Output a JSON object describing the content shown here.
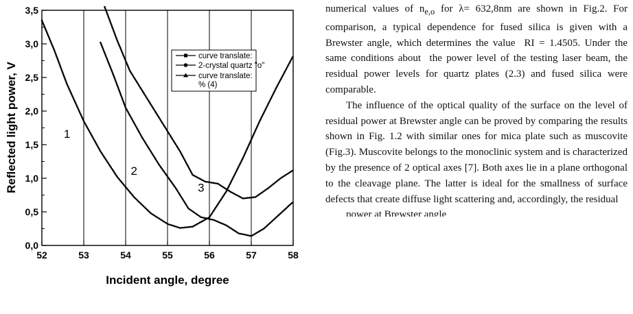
{
  "chart_data": {
    "type": "line",
    "xlabel": "Incident angle, degree",
    "ylabel": "Reflected light power, V",
    "xlim": [
      52,
      58
    ],
    "ylim": [
      0,
      3.5
    ],
    "xticks": [
      "52",
      "53",
      "54",
      "55",
      "56",
      "57",
      "58"
    ],
    "yticks": [
      "0,0",
      "0,5",
      "1,0",
      "1,5",
      "2,0",
      "2,5",
      "3,0",
      "3,5"
    ],
    "grid": "vertical lines at each x tick",
    "legend_position": "upper-center",
    "legend": [
      {
        "label": "curve translate:",
        "marker": "square"
      },
      {
        "label": "2-crystal quartz \"o\"",
        "marker": "circle"
      },
      {
        "label": "curve translate:",
        "marker": "triangle"
      },
      {
        "label": "% (4)",
        "marker": "none"
      }
    ],
    "curve_labels": [
      "1",
      "2",
      "3"
    ],
    "series": [
      {
        "label": "1",
        "x": [
          52.0,
          52.3,
          52.6,
          53.0,
          53.4,
          53.8,
          54.2,
          54.6,
          55.0,
          55.3,
          55.6,
          56.0,
          56.4,
          56.8,
          57.2,
          57.6,
          58.0
        ],
        "y": [
          3.35,
          2.9,
          2.4,
          1.85,
          1.4,
          1.02,
          0.72,
          0.48,
          0.32,
          0.26,
          0.28,
          0.42,
          0.8,
          1.3,
          1.85,
          2.35,
          2.82
        ]
      },
      {
        "label": "2",
        "x": [
          53.4,
          53.7,
          54.0,
          54.4,
          54.8,
          55.2,
          55.5,
          55.8,
          56.1,
          56.4,
          56.7,
          57.0,
          57.3,
          57.6,
          58.0
        ],
        "y": [
          3.02,
          2.55,
          2.05,
          1.6,
          1.2,
          0.85,
          0.55,
          0.42,
          0.38,
          0.3,
          0.18,
          0.14,
          0.25,
          0.42,
          0.65
        ]
      },
      {
        "label": "3",
        "x": [
          53.5,
          53.8,
          54.1,
          54.5,
          54.9,
          55.3,
          55.6,
          55.9,
          56.2,
          56.5,
          56.8,
          57.1,
          57.4,
          57.7,
          58.0
        ],
        "y": [
          3.55,
          3.05,
          2.6,
          2.2,
          1.8,
          1.4,
          1.05,
          0.95,
          0.92,
          0.8,
          0.7,
          0.72,
          0.85,
          1.0,
          1.12
        ]
      }
    ]
  },
  "text": {
    "p1_html": "numerical values of n<sub>e,o</sub> for λ= 632,8nm are shown in Fig.2. For comparison, a typical dependence for fused silica is given with a Brewster angle, which determines the value&nbsp; RI = 1.4505. Under the same conditions about&nbsp; the power level of the testing laser beam, the residual power levels for quartz plates (2.3) and fused silica were comparable.",
    "p2": "The influence of the optical quality of the surface on the level of residual power at  Brewster angle can be proved by comparing the results shown in Fig. 1.2 with similar ones for mica plate such as muscovite (Fig.3). Muscovite belongs to the monoclinic system and is characterized by the presence of 2 optical axes [7]. Both axes lie in a plane orthogonal to the cleavage plane. The latter is ideal for the smallness of surface defects that create diffuse light scattering and, accordingly, the residual",
    "p3_cut": "power at Brewster angle"
  }
}
